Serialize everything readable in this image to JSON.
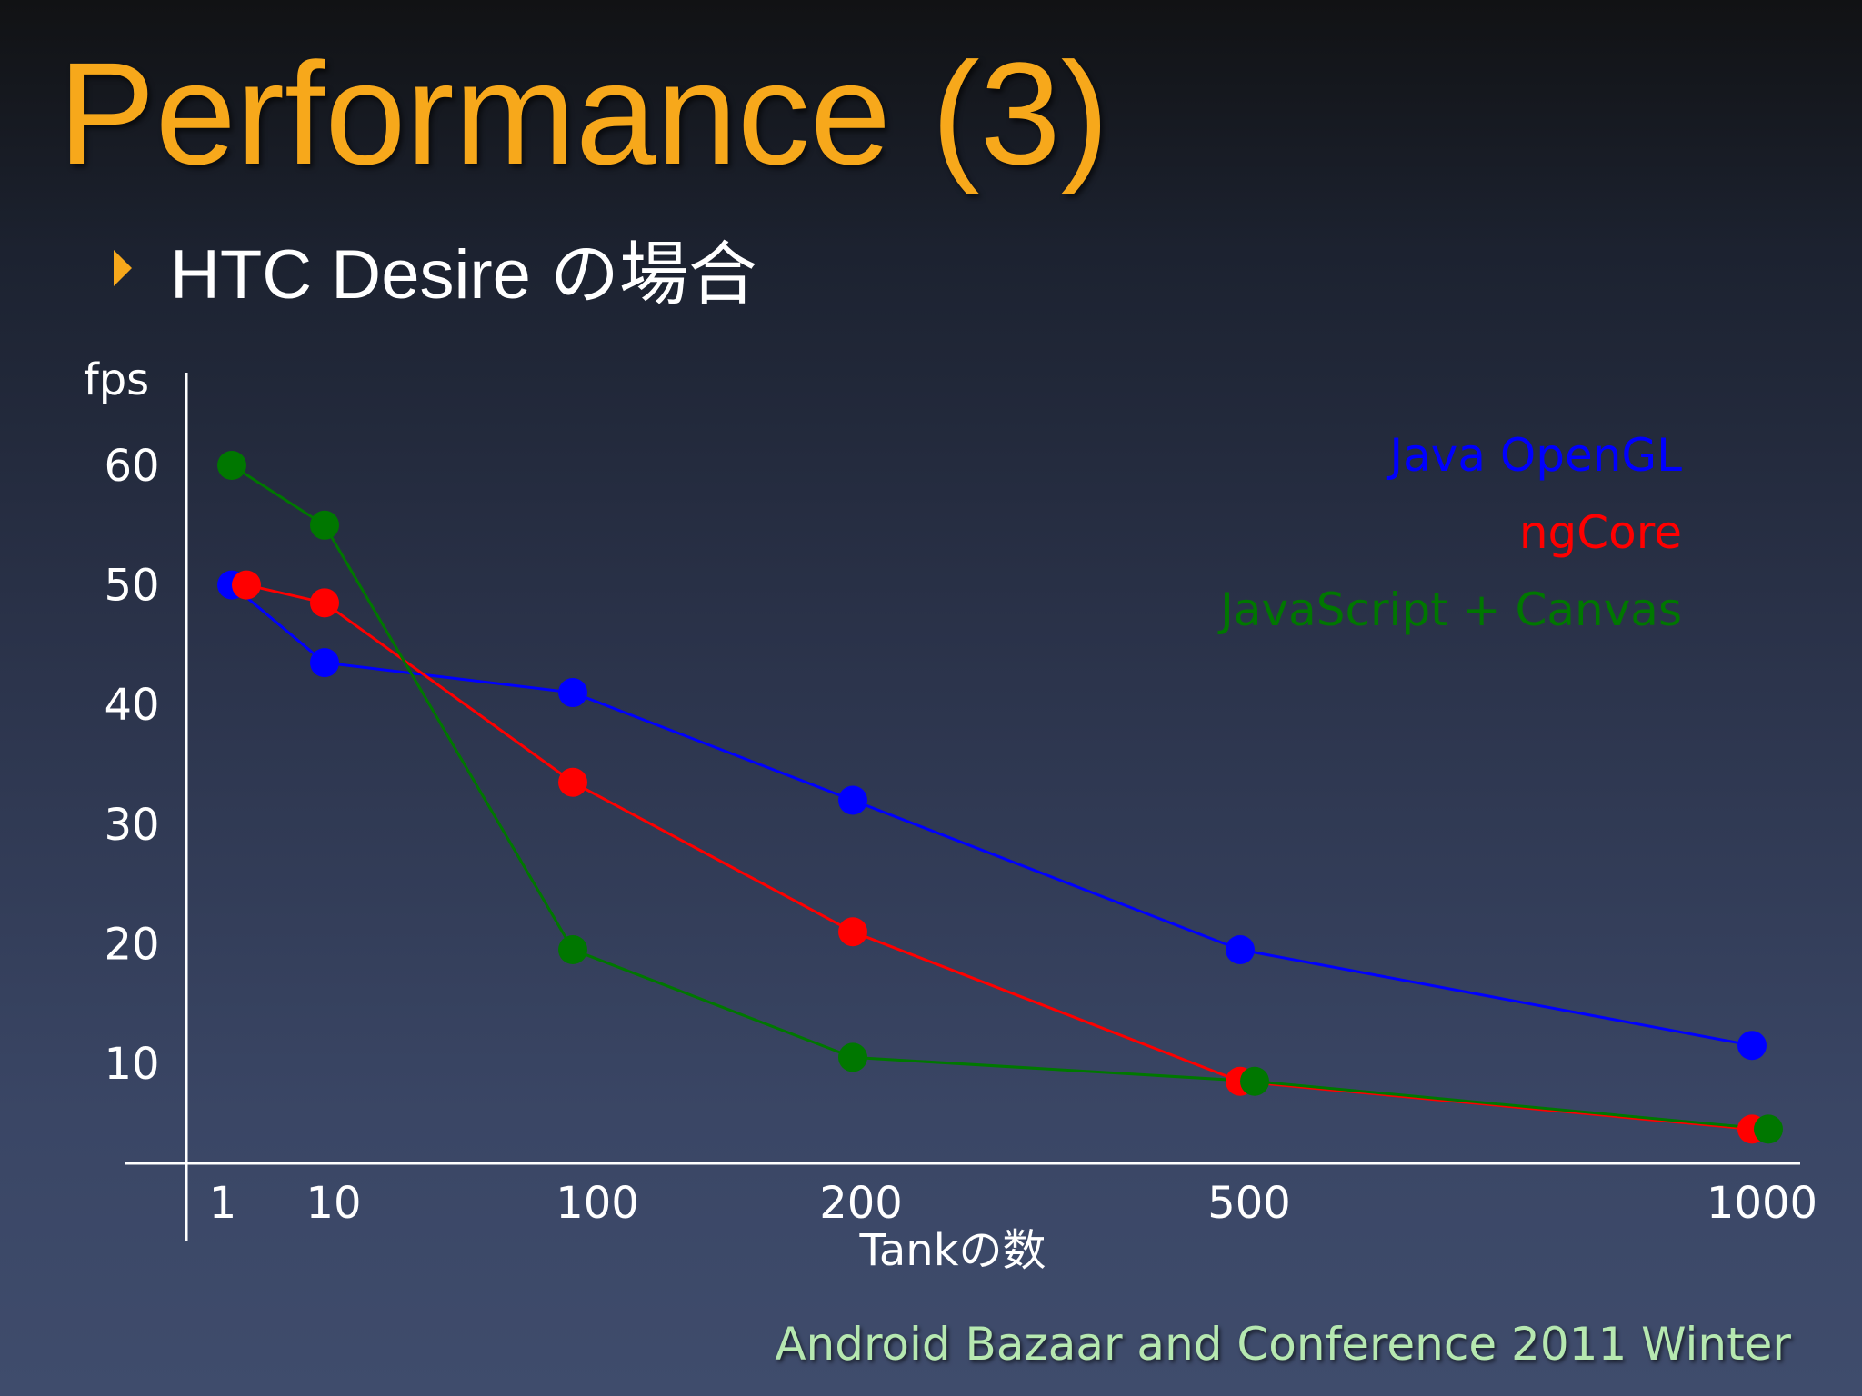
{
  "slide": {
    "title": "Performance (3)",
    "subtitle": "HTC Desire の場合",
    "footer": "Android Bazaar and Conference 2011 Winter"
  },
  "colors": {
    "title": "#f7a81b",
    "bullet": "#f7a81b",
    "footer": "#b6e8b0",
    "axis": "#ffffff"
  },
  "chart_data": {
    "type": "line",
    "ylabel": "fps",
    "xlabel": "Tankの数",
    "x_categories": [
      "1",
      "10",
      "100",
      "200",
      "500",
      "1000"
    ],
    "y_ticks": [
      60,
      50,
      40,
      30,
      20,
      10
    ],
    "ylim": [
      0,
      65
    ],
    "grid": false,
    "legend_position": "top-right",
    "series": [
      {
        "name": "Java OpenGL",
        "color": "#0000ff",
        "points": [
          {
            "x": "1",
            "y": 50
          },
          {
            "x": "10",
            "y": 43.5
          },
          {
            "x": "100",
            "y": 41
          },
          {
            "x": "200",
            "y": 32
          },
          {
            "x": "500",
            "y": 19.5
          },
          {
            "x": "1000",
            "y": 11.5
          }
        ]
      },
      {
        "name": "ngCore",
        "color": "#ff0000",
        "points": [
          {
            "x": "1",
            "y": 50
          },
          {
            "x": "10",
            "y": 48.5
          },
          {
            "x": "100",
            "y": 33.5
          },
          {
            "x": "200",
            "y": 21
          },
          {
            "x": "500",
            "y": 8.5
          },
          {
            "x": "1000",
            "y": 4.5
          }
        ]
      },
      {
        "name": "JavaScript + Canvas",
        "color": "#007700",
        "points": [
          {
            "x": "1",
            "y": 60
          },
          {
            "x": "10",
            "y": 55
          },
          {
            "x": "100",
            "y": 19.5
          },
          {
            "x": "200",
            "y": 10.5
          },
          {
            "x": "500",
            "y": 8.5
          },
          {
            "x": "1000",
            "y": 4.5
          }
        ]
      }
    ]
  }
}
